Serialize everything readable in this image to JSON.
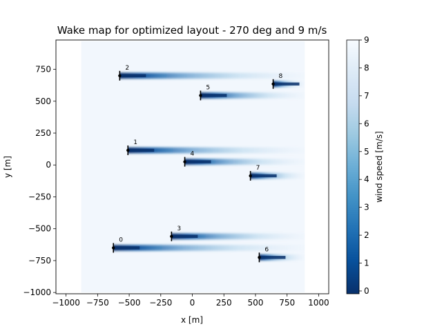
{
  "chart_data": {
    "type": "heatmap",
    "title": "Wake map for optimized layout -  270 deg and 9 m/s",
    "xlabel": "x [m]",
    "ylabel": "y [m]",
    "xlim": [
      -1080,
      1080
    ],
    "ylim": [
      -1010,
      980
    ],
    "xticks": [
      -1000,
      -750,
      -500,
      -250,
      0,
      250,
      500,
      750,
      1000
    ],
    "xtick_labels": [
      "−1000",
      "−750",
      "−500",
      "−250",
      "0",
      "250",
      "500",
      "750",
      "1000"
    ],
    "yticks": [
      -1000,
      -750,
      -500,
      -250,
      0,
      250,
      500,
      750
    ],
    "ytick_labels": [
      "−1000",
      "−750",
      "−500",
      "−250",
      "0",
      "250",
      "500",
      "750"
    ],
    "field_extent": {
      "x": [
        -880,
        890
      ],
      "y": [
        -1000,
        970
      ]
    },
    "wind_direction_deg": 270,
    "free_stream_speed": 9,
    "colormap": "Blues_r",
    "colorbar": {
      "label": "wind speed [m/s]",
      "range": [
        -0.1,
        9
      ],
      "ticks": [
        0,
        1,
        2,
        3,
        4,
        5,
        6,
        7,
        8,
        9
      ],
      "tick_labels": [
        "0",
        "1",
        "2",
        "3",
        "4",
        "5",
        "6",
        "7",
        "8",
        "9"
      ]
    },
    "turbines": [
      {
        "id": "0",
        "x": -625,
        "y": -650
      },
      {
        "id": "1",
        "x": -510,
        "y": 115
      },
      {
        "id": "2",
        "x": -575,
        "y": 700
      },
      {
        "id": "3",
        "x": -165,
        "y": -560
      },
      {
        "id": "4",
        "x": -60,
        "y": 25
      },
      {
        "id": "5",
        "x": 65,
        "y": 545
      },
      {
        "id": "6",
        "x": 530,
        "y": -725
      },
      {
        "id": "7",
        "x": 460,
        "y": -85
      },
      {
        "id": "8",
        "x": 640,
        "y": 635
      }
    ]
  }
}
